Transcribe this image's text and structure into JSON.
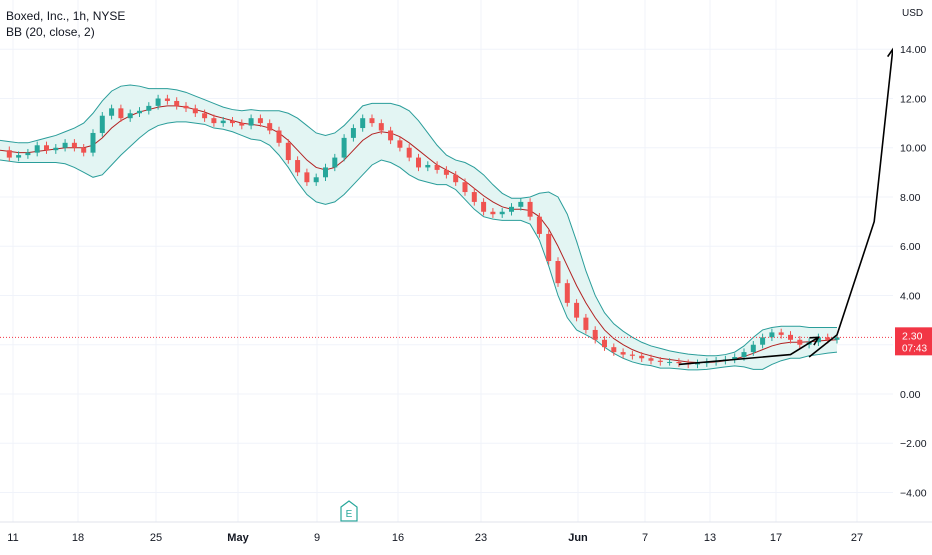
{
  "header": {
    "symbol_line": "Boxed, Inc., 1h, NYSE",
    "indicator_line": "BB (20, close, 2)"
  },
  "colors": {
    "up": "#26a69a",
    "down": "#ef5350",
    "band_line": "#2a9d9a",
    "band_fill": "#e3f5f3",
    "basis": "#b22222",
    "price_label_bg": "#f23645",
    "grid": "#f0f3fa",
    "axis_text": "#131722"
  },
  "chart_data": {
    "type": "candlestick",
    "y_unit": "USD",
    "ylim": [
      -5.2,
      16.0
    ],
    "y_ticks": [
      -4,
      -2,
      0,
      2,
      4,
      6,
      8,
      10,
      12,
      14
    ],
    "y_tick_labels": [
      "−4.00",
      "−2.00",
      "0.00",
      "2.00",
      "4.00",
      "6.00",
      "8.00",
      "10.00",
      "12.00",
      "14.00"
    ],
    "x_ticks": [
      "11",
      "18",
      "25",
      "May",
      "9",
      "16",
      "23",
      "Jun",
      "7",
      "13",
      "17",
      "27"
    ],
    "bold_x_ticks": [
      "May",
      "Jun"
    ],
    "grid": true,
    "current_price": {
      "value": 2.3,
      "label": "2.30",
      "countdown": "07:43"
    },
    "earnings_marker": "E",
    "close_path_x": [
      0,
      1,
      2,
      3,
      4,
      5,
      6,
      7,
      8,
      9,
      10,
      11,
      12,
      13,
      14,
      15,
      16,
      17,
      18,
      19,
      20,
      21,
      22,
      23,
      24,
      25,
      26,
      27,
      28,
      29,
      30,
      31,
      32,
      33,
      34,
      35,
      36,
      37,
      38,
      39,
      40,
      41,
      42,
      43,
      44,
      45,
      46,
      47,
      48,
      49,
      50,
      51,
      52,
      53,
      54,
      55,
      56,
      57,
      58,
      59,
      60,
      61,
      62,
      63,
      64,
      65,
      66,
      67,
      68,
      69,
      70,
      71,
      72,
      73,
      74,
      75,
      76,
      77,
      78,
      79,
      80,
      81,
      82,
      83,
      84,
      85,
      86,
      87,
      88,
      89,
      90
    ],
    "close_path": [
      9.9,
      9.6,
      9.7,
      9.8,
      10.1,
      9.9,
      10.0,
      10.2,
      10.0,
      9.8,
      10.6,
      11.3,
      11.6,
      11.2,
      11.4,
      11.5,
      11.7,
      12.0,
      11.9,
      11.7,
      11.6,
      11.4,
      11.2,
      11.0,
      11.1,
      11.0,
      10.9,
      11.2,
      11.0,
      10.7,
      10.2,
      9.5,
      9.0,
      8.6,
      8.8,
      9.2,
      9.6,
      10.4,
      10.8,
      11.2,
      11.0,
      10.7,
      10.3,
      10.0,
      9.6,
      9.2,
      9.3,
      9.1,
      8.9,
      8.6,
      8.2,
      7.8,
      7.4,
      7.3,
      7.4,
      7.6,
      7.8,
      7.2,
      6.5,
      5.4,
      4.5,
      3.7,
      3.1,
      2.6,
      2.2,
      1.9,
      1.7,
      1.6,
      1.55,
      1.45,
      1.35,
      1.3,
      1.3,
      1.25,
      1.2,
      1.25,
      1.3,
      1.35,
      1.4,
      1.5,
      1.7,
      2.0,
      2.3,
      2.5,
      2.4,
      2.2,
      2.0,
      2.1,
      2.3,
      2.2,
      2.3
    ],
    "basis": [
      9.9,
      9.85,
      9.8,
      9.8,
      9.85,
      9.9,
      9.95,
      10.0,
      10.0,
      10.0,
      10.1,
      10.4,
      10.8,
      11.1,
      11.3,
      11.45,
      11.55,
      11.65,
      11.7,
      11.7,
      11.65,
      11.55,
      11.45,
      11.3,
      11.2,
      11.1,
      11.0,
      10.95,
      10.9,
      10.8,
      10.6,
      10.3,
      9.9,
      9.5,
      9.2,
      9.1,
      9.2,
      9.5,
      9.9,
      10.3,
      10.55,
      10.65,
      10.6,
      10.45,
      10.2,
      9.9,
      9.6,
      9.3,
      9.1,
      8.9,
      8.65,
      8.35,
      8.05,
      7.8,
      7.6,
      7.5,
      7.5,
      7.45,
      7.2,
      6.7,
      6.0,
      5.2,
      4.4,
      3.7,
      3.1,
      2.6,
      2.25,
      2.0,
      1.8,
      1.65,
      1.55,
      1.45,
      1.4,
      1.35,
      1.3,
      1.28,
      1.28,
      1.3,
      1.35,
      1.42,
      1.52,
      1.65,
      1.8,
      1.95,
      2.05,
      2.1,
      2.1,
      2.12,
      2.15,
      2.18,
      2.2
    ],
    "upper_band": [
      10.3,
      10.25,
      10.2,
      10.2,
      10.3,
      10.4,
      10.5,
      10.65,
      10.8,
      11.0,
      11.4,
      11.9,
      12.3,
      12.5,
      12.55,
      12.5,
      12.4,
      12.4,
      12.4,
      12.35,
      12.25,
      12.1,
      11.95,
      11.8,
      11.65,
      11.55,
      11.5,
      11.55,
      11.5,
      11.5,
      11.5,
      11.4,
      11.2,
      10.9,
      10.6,
      10.5,
      10.6,
      10.9,
      11.3,
      11.7,
      11.8,
      11.8,
      11.8,
      11.7,
      11.5,
      11.1,
      10.6,
      10.1,
      9.7,
      9.5,
      9.4,
      9.2,
      8.9,
      8.5,
      8.15,
      7.95,
      7.95,
      8.0,
      8.15,
      8.2,
      8.0,
      7.3,
      6.2,
      5.0,
      4.0,
      3.3,
      2.85,
      2.55,
      2.3,
      2.1,
      1.95,
      1.85,
      1.75,
      1.68,
      1.62,
      1.58,
      1.55,
      1.55,
      1.6,
      1.7,
      1.95,
      2.3,
      2.6,
      2.7,
      2.75,
      2.75,
      2.75,
      2.7,
      2.7,
      2.7,
      2.7
    ],
    "lower_band": [
      9.5,
      9.45,
      9.4,
      9.4,
      9.4,
      9.4,
      9.4,
      9.35,
      9.2,
      9.0,
      8.8,
      8.9,
      9.3,
      9.7,
      10.05,
      10.4,
      10.7,
      10.9,
      11.0,
      11.05,
      11.05,
      11.0,
      10.95,
      10.8,
      10.75,
      10.65,
      10.5,
      10.35,
      10.3,
      10.1,
      9.7,
      9.2,
      8.6,
      8.1,
      7.8,
      7.7,
      7.8,
      8.1,
      8.5,
      8.9,
      9.3,
      9.5,
      9.4,
      9.2,
      8.9,
      8.7,
      8.6,
      8.5,
      8.5,
      8.3,
      7.9,
      7.5,
      7.2,
      7.1,
      7.05,
      7.05,
      7.05,
      6.9,
      6.25,
      5.2,
      4.0,
      3.1,
      2.6,
      2.4,
      2.2,
      1.9,
      1.65,
      1.45,
      1.3,
      1.2,
      1.15,
      1.05,
      1.05,
      1.02,
      0.98,
      0.98,
      1.0,
      1.05,
      1.1,
      1.14,
      1.1,
      1.0,
      1.0,
      1.2,
      1.35,
      1.45,
      1.45,
      1.55,
      1.6,
      1.66,
      1.7
    ],
    "annotations": [
      {
        "type": "arrow",
        "points": [
          [
            73,
            1.2
          ],
          [
            85,
            1.6
          ],
          [
            88,
            2.3
          ]
        ]
      },
      {
        "type": "arrow",
        "points": [
          [
            87,
            1.5
          ],
          [
            90,
            2.4
          ],
          [
            94,
            7.0
          ],
          [
            96,
            14.0
          ]
        ]
      }
    ]
  }
}
